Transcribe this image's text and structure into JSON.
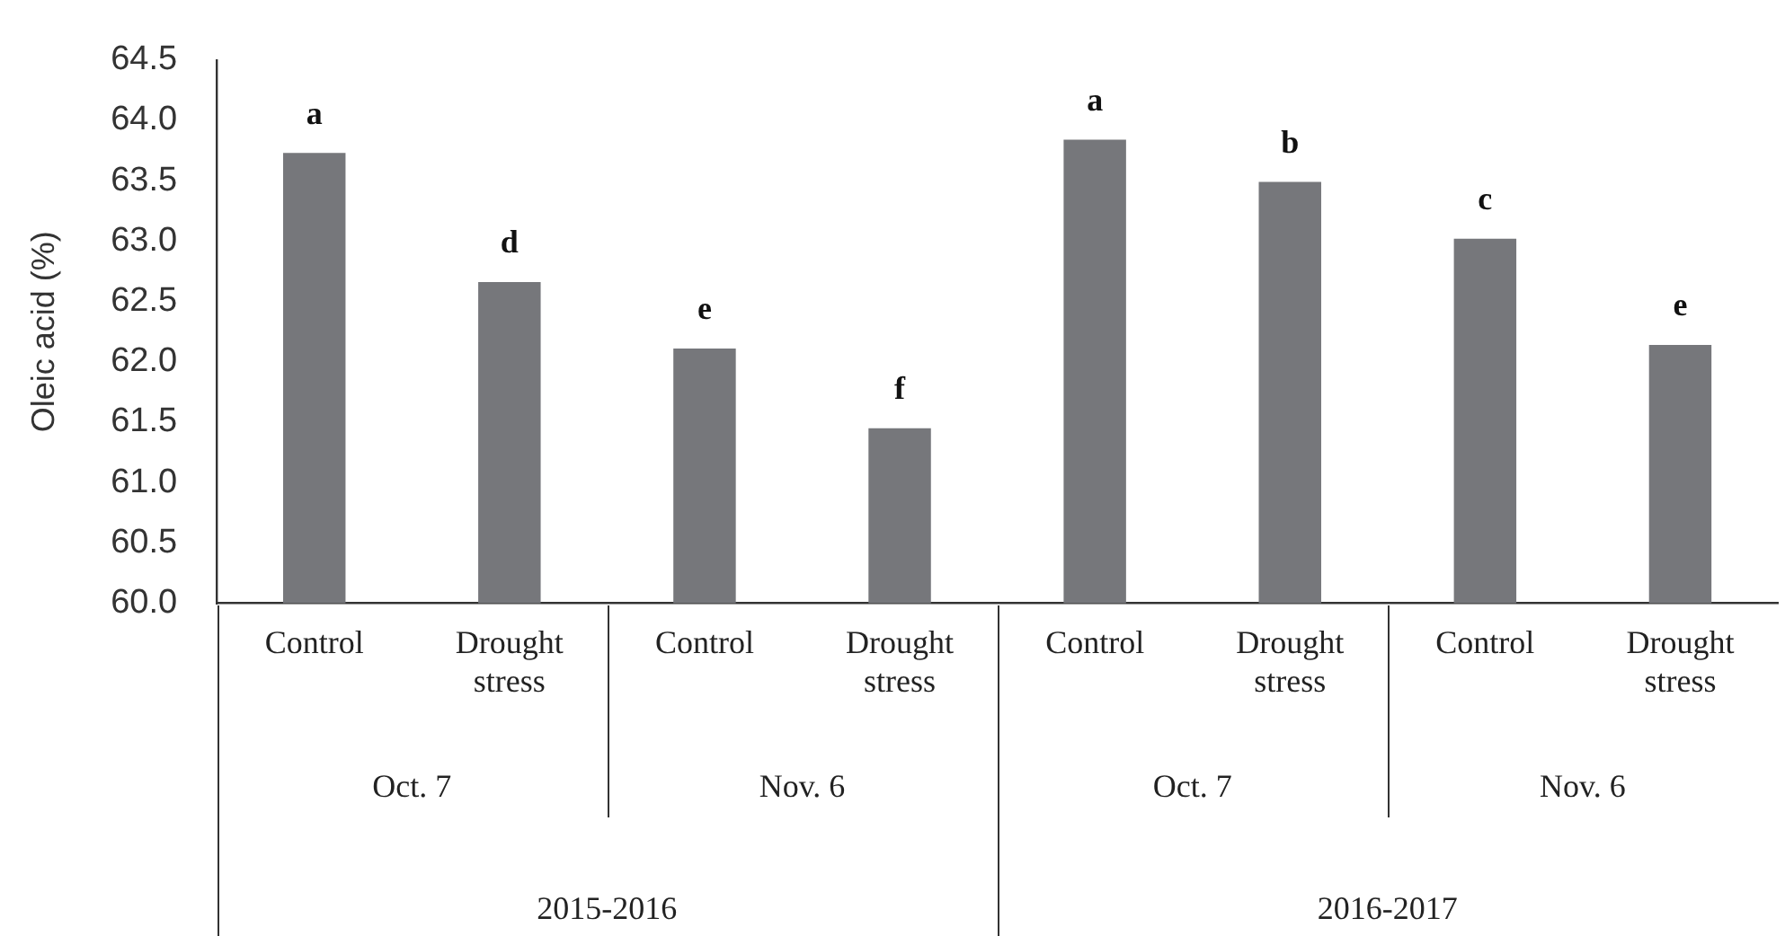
{
  "chart_data": {
    "type": "bar",
    "ylabel": "Oleic acid (%)",
    "categories": [
      "Control",
      "Drought stress",
      "Control",
      "Drought stress",
      "Control",
      "Drought stress",
      "Control",
      "Drought stress"
    ],
    "values": [
      63.73,
      62.66,
      62.11,
      61.45,
      63.84,
      63.49,
      63.02,
      62.14
    ],
    "color": "#76777b",
    "value_labels": [
      "a",
      "d",
      "e",
      "f",
      "a",
      "b",
      "c",
      "e"
    ],
    "ylim": [
      60,
      64.5
    ],
    "yticks": [
      {
        "value": 60,
        "label": "60.0"
      },
      {
        "value": 60.5,
        "label": "60.5"
      },
      {
        "value": 61,
        "label": "61.0"
      },
      {
        "value": 61.5,
        "label": "61.5"
      },
      {
        "value": 62,
        "label": "62.0"
      },
      {
        "value": 62.5,
        "label": "62.5"
      },
      {
        "value": 63,
        "label": "63.0"
      },
      {
        "value": 63.5,
        "label": "63.5"
      },
      {
        "value": 64,
        "label": "64.0"
      },
      {
        "value": 64.5,
        "label": "64.5"
      }
    ],
    "annotations": [
      "Oct. 7",
      "Nov. 6",
      "Oct. 7",
      "Nov. 6",
      "2015-2016",
      "2016-2017"
    ],
    "grid": false,
    "legend": false
  }
}
